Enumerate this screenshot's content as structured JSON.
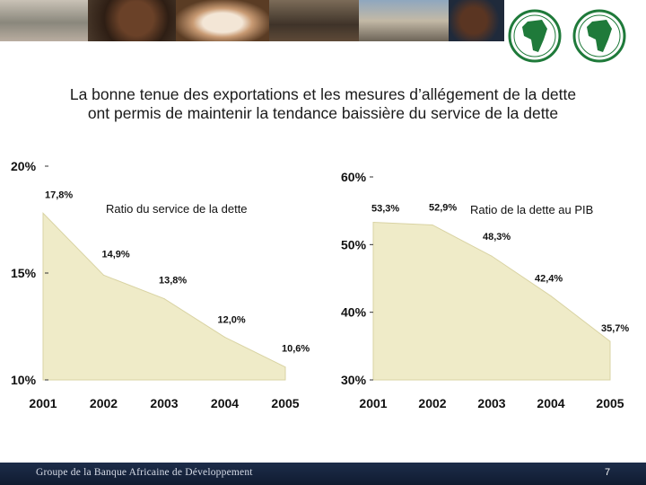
{
  "title": {
    "line1": "La bonne tenue des exportations et les mesures d’allégement de la dette",
    "line2": "ont permis de maintenir la tendance baissière du service de la dette"
  },
  "colors": {
    "area_fill": "#efebc8",
    "area_edge": "#d9d3a3",
    "footer_bg": "#16233d"
  },
  "chart_data": [
    {
      "type": "area",
      "title": "Ratio du service de la dette",
      "x": [
        "2001",
        "2002",
        "2003",
        "2004",
        "2005"
      ],
      "values": [
        17.8,
        14.9,
        13.8,
        12.0,
        10.6
      ],
      "data_labels": [
        "17,8%",
        "14,9%",
        "13,8%",
        "12,0%",
        "10,6%"
      ],
      "ylim": [
        10,
        20
      ],
      "yticks": [
        "10%",
        "15%",
        "20%"
      ],
      "grid": false
    },
    {
      "type": "area",
      "title": "Ratio de la dette au PIB",
      "x": [
        "2001",
        "2002",
        "2003",
        "2004",
        "2005"
      ],
      "values": [
        53.3,
        52.9,
        48.3,
        42.4,
        35.7
      ],
      "data_labels": [
        "53,3%",
        "52,9%",
        "48,3%",
        "42,4%",
        "35,7%"
      ],
      "ylim": [
        30,
        60
      ],
      "yticks": [
        "30%",
        "40%",
        "50%",
        "60%"
      ],
      "grid": false
    }
  ],
  "footer": {
    "text": "Groupe de la Banque Africaine de Développement",
    "page": "7"
  }
}
